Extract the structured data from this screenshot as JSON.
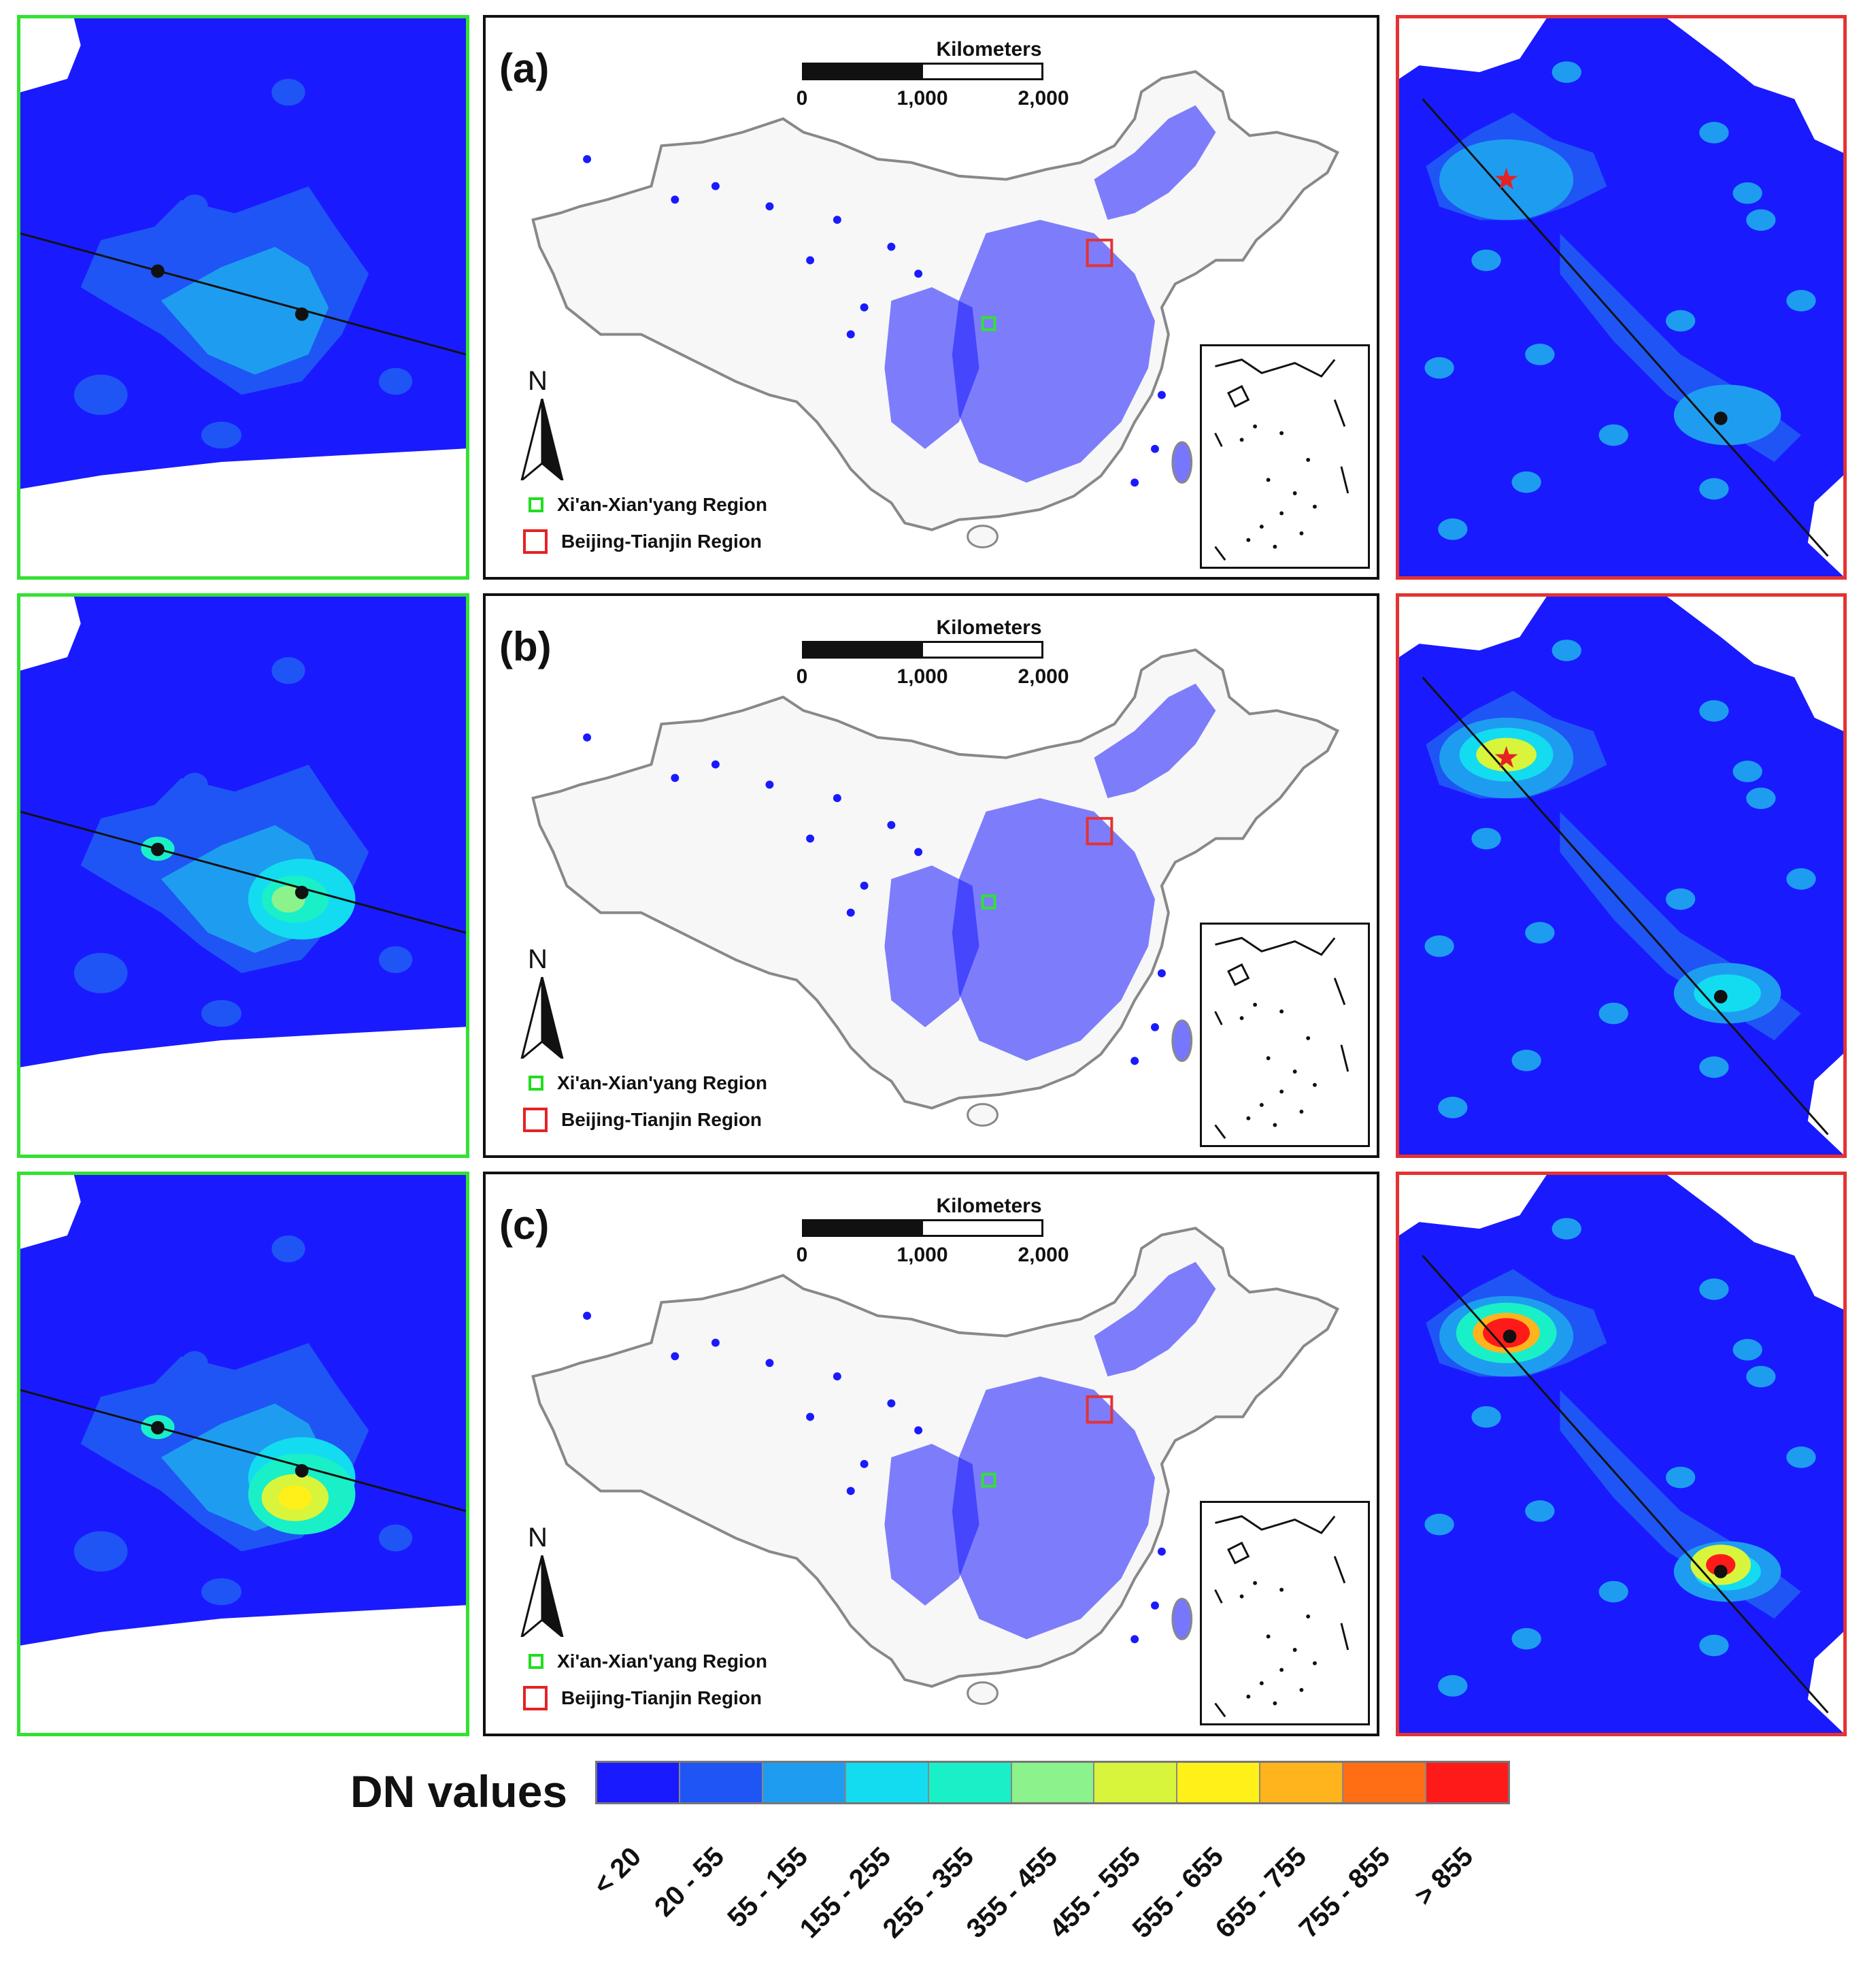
{
  "panels": [
    {
      "label": "(a)",
      "period": 0,
      "star": true
    },
    {
      "label": "(b)",
      "period": 1,
      "star": true
    },
    {
      "label": "(c)",
      "period": 2,
      "star": false
    }
  ],
  "scale_bar": {
    "title": "Kilometers",
    "ticks": [
      "0",
      "1,000",
      "2,000"
    ]
  },
  "north_label": "N",
  "map_legend": {
    "xian": "Xi'an-Xian'yang Region",
    "beijing": "Beijing-Tianjin Region"
  },
  "dn_legend": {
    "title": "DN values",
    "classes": [
      {
        "label": "< 20",
        "color": "#1a1aff"
      },
      {
        "label": "20 - 55",
        "color": "#1f55f5"
      },
      {
        "label": "55 - 155",
        "color": "#1e9df0"
      },
      {
        "label": "155 - 255",
        "color": "#13dcf0"
      },
      {
        "label": "255 - 355",
        "color": "#19f0c8"
      },
      {
        "label": "355 - 455",
        "color": "#8cf28c"
      },
      {
        "label": "455 - 555",
        "color": "#d8f53c"
      },
      {
        "label": "555 - 655",
        "color": "#fff019"
      },
      {
        "label": "655 - 755",
        "color": "#ffb41e"
      },
      {
        "label": "755 - 855",
        "color": "#ff6e14"
      },
      {
        "label": "> 855",
        "color": "#ff1a1a"
      }
    ]
  },
  "colors": {
    "xian_frame": "#33e133",
    "beijing_frame": "#e53232",
    "urban": "#1a1aff",
    "boundary": "#888888"
  }
}
